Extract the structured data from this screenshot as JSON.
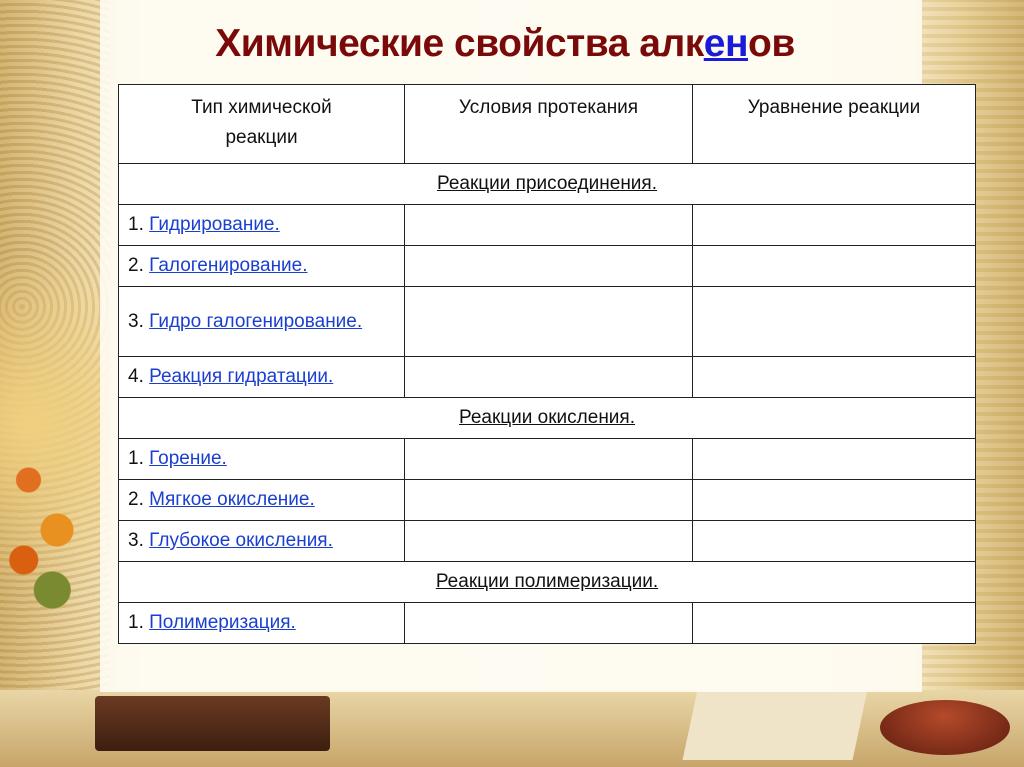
{
  "title": {
    "prefix": "Химические свойства алк",
    "highlight": "ен",
    "suffix": "ов"
  },
  "table": {
    "headers": [
      "Тип химической реакции",
      "Условия протекания",
      "Уравнение реакции"
    ],
    "sections": [
      {
        "label": "Реакции присоединения.",
        "rows": [
          {
            "num": "1.",
            "link": "Гидрирование."
          },
          {
            "num": "2.",
            "link": "Галогенирование."
          },
          {
            "num": "3.",
            "link": "Гидро галогенирование."
          },
          {
            "num": "4.",
            "link": "Реакция гидратации."
          }
        ]
      },
      {
        "label": "Реакции окисления.",
        "rows": [
          {
            "num": "1.",
            "link": "Горение."
          },
          {
            "num": "2.",
            "link": "Мягкое окисление."
          },
          {
            "num": "3.",
            "link": "Глубокое окисления."
          }
        ]
      },
      {
        "label": "Реакции полимеризации.",
        "rows": [
          {
            "num": "1.",
            "link": "Полимеризация."
          }
        ]
      }
    ]
  },
  "colors": {
    "title": "#7a0a0a",
    "link": "#1a3fd0"
  }
}
